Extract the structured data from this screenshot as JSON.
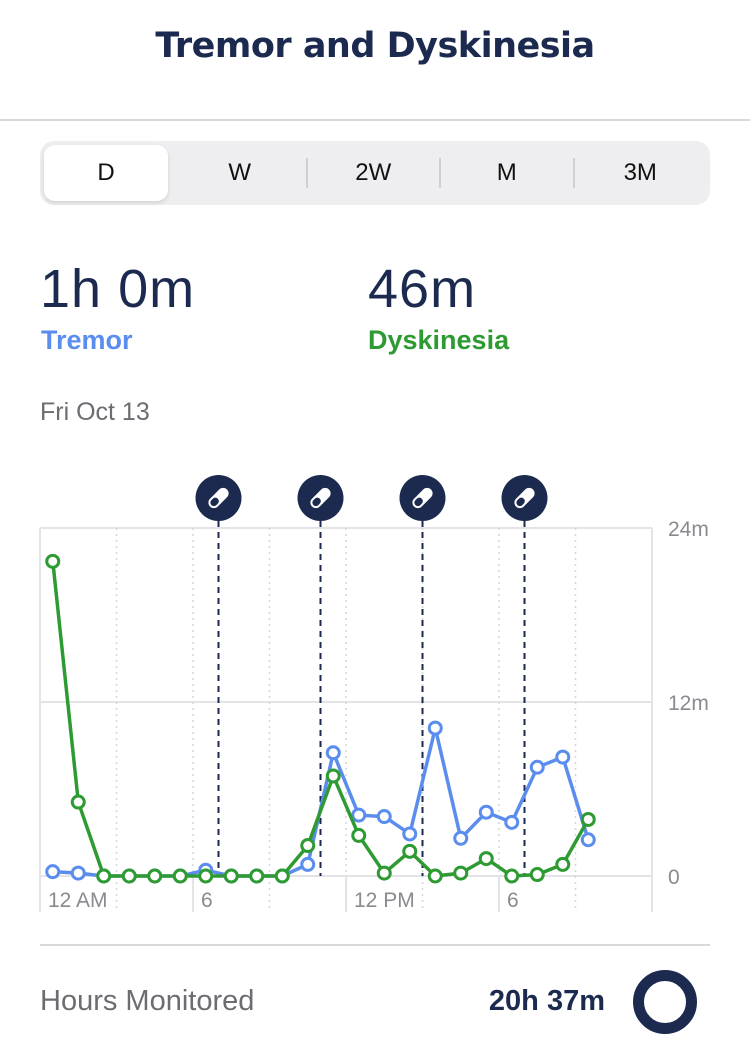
{
  "header": {
    "title": "Tremor and Dyskinesia"
  },
  "segments": [
    {
      "label": "D",
      "active": true
    },
    {
      "label": "W",
      "active": false
    },
    {
      "label": "2W",
      "active": false
    },
    {
      "label": "M",
      "active": false
    },
    {
      "label": "3M",
      "active": false
    }
  ],
  "stats": {
    "tremor": {
      "value": "1h 0m",
      "label": "Tremor"
    },
    "dyskinesia": {
      "value": "46m",
      "label": "Dyskinesia"
    }
  },
  "date": "Fri Oct 13",
  "footer": {
    "label": "Hours Monitored",
    "value": "20h 37m",
    "ring_icon": "progress-ring-icon"
  },
  "chart_data": {
    "type": "line",
    "x_tick_labels": [
      {
        "hour": 0,
        "label": "12 AM"
      },
      {
        "hour": 6,
        "label": "6"
      },
      {
        "hour": 12,
        "label": "12 PM"
      },
      {
        "hour": 18,
        "label": "6"
      }
    ],
    "y_tick_labels": [
      {
        "value": 24,
        "label": "24m"
      },
      {
        "value": 12,
        "label": "12m"
      },
      {
        "value": 0,
        "label": "0"
      }
    ],
    "xlim": [
      0,
      24
    ],
    "ylim": [
      0,
      24
    ],
    "medication_hours": [
      7,
      11,
      15,
      19
    ],
    "medication_icon": "pill-icon",
    "colors": {
      "tremor": "#5b8dee",
      "dyskinesia": "#2e9a32",
      "medication": "#1b2a4e",
      "grid": "#e4e4e8"
    },
    "series": [
      {
        "key": "tremor",
        "x": [
          0.5,
          1.5,
          2.5,
          3.5,
          4.5,
          5.5,
          6.5,
          7.5,
          8.5,
          9.5,
          10.5,
          11.5,
          12.5,
          13.5,
          14.5,
          15.5,
          16.5,
          17.5,
          18.5,
          19.5,
          20.5,
          21.5
        ],
        "values": [
          0.3,
          0.2,
          0,
          0,
          0,
          0,
          0.4,
          0,
          0,
          0,
          0.8,
          8.5,
          4.2,
          4.1,
          2.9,
          10.2,
          2.6,
          4.4,
          3.7,
          7.5,
          8.2,
          2.5
        ]
      },
      {
        "key": "dyskinesia",
        "x": [
          0.5,
          1.5,
          2.5,
          3.5,
          4.5,
          5.5,
          6.5,
          7.5,
          8.5,
          9.5,
          10.5,
          11.5,
          12.5,
          13.5,
          14.5,
          15.5,
          16.5,
          17.5,
          18.5,
          19.5,
          20.5,
          21.5
        ],
        "values": [
          21.7,
          5.1,
          0,
          0,
          0,
          0,
          0,
          0,
          0,
          0,
          2.1,
          6.9,
          2.8,
          0.2,
          1.7,
          0,
          0.2,
          1.2,
          0,
          0.1,
          0.8,
          3.9
        ]
      }
    ]
  }
}
